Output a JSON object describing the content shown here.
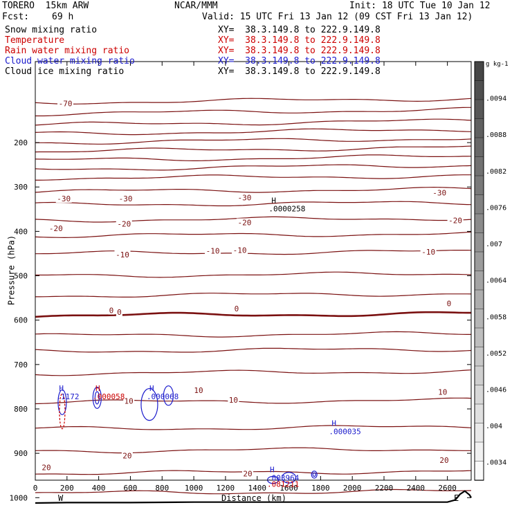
{
  "header": {
    "model": "TORERO  15km ARW",
    "org": "NCAR/MMM",
    "init": "Init: 18 UTC Tue 10 Jan 12",
    "fcst_label": "Fcst:",
    "fcst_value": "69 h",
    "valid": "Valid: 15 UTC Fri 13 Jan 12 (09 CST Fri 13 Jan 12)"
  },
  "legend": [
    {
      "name": "Snow mixing ratio",
      "xy": "XY=  38.3.149.8 to 222.9.149.8",
      "color": "#000000"
    },
    {
      "name": "Temperature",
      "xy": "XY=  38.3.149.8 to 222.9.149.8",
      "color": "#cc0000"
    },
    {
      "name": "Rain water mixing ratio",
      "xy": "XY=  38.3.149.8 to 222.9.149.8",
      "color": "#cc0000"
    },
    {
      "name": "Cloud water mixing ratio",
      "xy": "XY=  38.3.149.8 to 222.9.149.8",
      "color": "#1a1acc"
    },
    {
      "name": "Cloud ice mixing ratio",
      "xy": "XY=  38.3.149.8 to 222.9.149.8",
      "color": "#000000"
    }
  ],
  "colors": {
    "temperature_contour": "#7a1010",
    "zero_isotherm": "#7a1010",
    "cloud_water": "#1a1acc",
    "rain_water": "#cc0000",
    "terrain": "#000000"
  },
  "chart_data": {
    "type": "line",
    "xlabel": "Distance (km)",
    "ylabel": "Pressure (hPa)",
    "xlim": [
      0,
      2750
    ],
    "ylim": [
      1050,
      100
    ],
    "x_ticks": [
      "0",
      "200",
      "400",
      "600",
      "800",
      "1000",
      "1200",
      "1400",
      "1600",
      "1800",
      "2000",
      "2200",
      "2400",
      "2600"
    ],
    "y_ticks": [
      "200",
      "300",
      "400",
      "500",
      "600",
      "700",
      "800",
      "900",
      "1000"
    ],
    "x_end_labels": {
      "left": "W",
      "right": "E"
    },
    "isotherm_levels_hpa": [
      110,
      135,
      160,
      180,
      200,
      220,
      240,
      260,
      280,
      310,
      340,
      375,
      410,
      450,
      500,
      545,
      590,
      635,
      670,
      720,
      785,
      845,
      895,
      945,
      990
    ],
    "isotherm_labels": [
      {
        "text": "-70",
        "x": 190,
        "p": 112
      },
      {
        "text": "-30",
        "x": 180,
        "p": 326
      },
      {
        "text": "-30",
        "x": 570,
        "p": 326
      },
      {
        "text": "-30",
        "x": 1320,
        "p": 324
      },
      {
        "text": "-30",
        "x": 2550,
        "p": 313
      },
      {
        "text": "-20",
        "x": 130,
        "p": 393
      },
      {
        "text": "-20",
        "x": 560,
        "p": 383
      },
      {
        "text": "-20",
        "x": 1320,
        "p": 380
      },
      {
        "text": "-20",
        "x": 2650,
        "p": 375
      },
      {
        "text": "-10",
        "x": 550,
        "p": 452
      },
      {
        "text": "-10",
        "x": 1120,
        "p": 444
      },
      {
        "text": "-10",
        "x": 1290,
        "p": 442
      },
      {
        "text": "-10",
        "x": 2480,
        "p": 446
      },
      {
        "text": "0",
        "x": 480,
        "p": 578
      },
      {
        "text": "0",
        "x": 530,
        "p": 582
      },
      {
        "text": "0",
        "x": 1270,
        "p": 574
      },
      {
        "text": "0",
        "x": 2610,
        "p": 562
      },
      {
        "text": "10",
        "x": 1030,
        "p": 758
      },
      {
        "text": "10",
        "x": 590,
        "p": 782
      },
      {
        "text": "10",
        "x": 1250,
        "p": 780
      },
      {
        "text": "10",
        "x": 2570,
        "p": 762
      },
      {
        "text": "20",
        "x": 70,
        "p": 932
      },
      {
        "text": "20",
        "x": 580,
        "p": 905
      },
      {
        "text": "20",
        "x": 1340,
        "p": 946
      },
      {
        "text": "20",
        "x": 2580,
        "p": 915
      }
    ],
    "maxima_labels": [
      {
        "marker": "H",
        "value": ".0000258",
        "x": 1490,
        "p": 352,
        "color": "#000000"
      },
      {
        "marker": "H",
        "value": ".000035",
        "x": 1870,
        "p": 854,
        "color": "#1a1acc"
      },
      {
        "marker": "H",
        "value": ".1172",
        "x": 150,
        "p": 775,
        "color": "#1a1acc"
      },
      {
        "marker": "H",
        "value": ".000058",
        "x": 380,
        "p": 775,
        "color": "#cc0000"
      },
      {
        "marker": "H",
        "value": ".000068",
        "x": 720,
        "p": 775,
        "color": "#1a1acc"
      },
      {
        "marker": "H",
        "value": ".003964",
        "x": 1480,
        "p": 958,
        "color": "#1a1acc"
      },
      {
        "marker": "",
        "value": ".081211",
        "x": 1480,
        "p": 972,
        "color": "#cc0000"
      }
    ],
    "terrain_km": [
      0,
      200,
      600,
      1000,
      1400,
      1800,
      2200,
      2600,
      2650,
      2680,
      2710,
      2740,
      2750
    ],
    "terrain_hpa": [
      1012,
      1011,
      1011,
      1010,
      1010,
      1010,
      1010,
      1010,
      1005,
      992,
      985,
      994,
      1000
    ],
    "colorbar": {
      "unit": "g kg-1",
      "ticks": [
        ".0094",
        ".0088",
        ".0082",
        ".0076",
        ".007",
        ".0064",
        ".0058",
        ".0052",
        ".0046",
        ".004",
        ".0034"
      ],
      "min": 0.0031,
      "max": 0.01
    }
  }
}
